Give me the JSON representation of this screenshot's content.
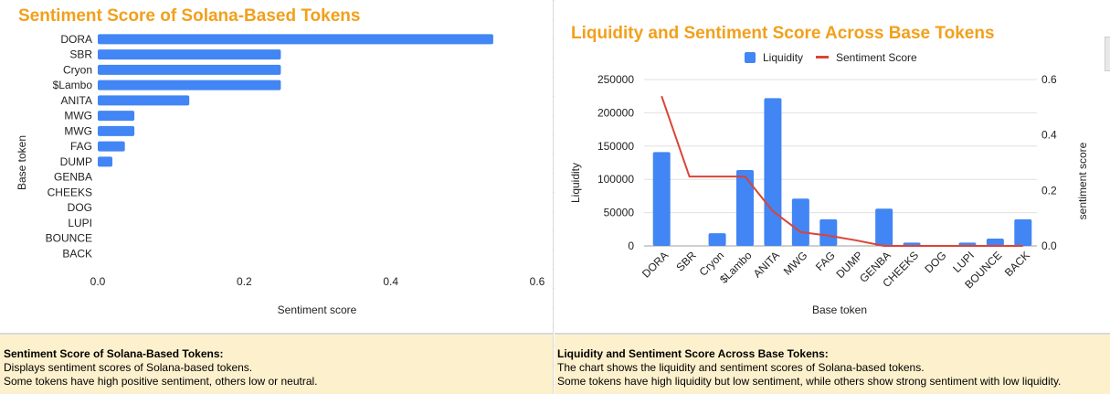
{
  "colors": {
    "title": "#f2a01c",
    "bar": "#4285f4",
    "line": "#db4437",
    "grid": "#e0e0e0",
    "note_background": "#fdf1cd"
  },
  "chart_data": [
    {
      "type": "bar",
      "orientation": "horizontal",
      "title": "Sentiment Score of Solana-Based Tokens",
      "xlabel": "Sentiment score",
      "ylabel": "Base token",
      "categories": [
        "DORA",
        "SBR",
        "Cryon",
        "$Lambo",
        "ANITA",
        "MWG",
        "MWG",
        "FAG",
        "DUMP",
        "GENBA",
        "CHEEKS",
        "DOG",
        "LUPI",
        "BOUNCE",
        "BACK"
      ],
      "values": [
        0.54,
        0.25,
        0.25,
        0.25,
        0.125,
        0.05,
        0.05,
        0.037,
        0.02,
        0,
        0,
        0,
        0,
        0,
        0
      ],
      "xlim": [
        0,
        0.6
      ],
      "xticks": [
        "0.0",
        "0.2",
        "0.4",
        "0.6"
      ],
      "grid": false,
      "legend": "none"
    },
    {
      "type": "bar+line",
      "title": "Liquidity and Sentiment Score Across Base Tokens",
      "xlabel": "Base token",
      "ylabel": "Liquidity",
      "ylabel_right": "sentiment score",
      "categories": [
        "DORA",
        "SBR",
        "Cryon",
        "$Lambo",
        "ANITA",
        "MWG",
        "FAG",
        "DUMP",
        "GENBA",
        "CHEEKS",
        "DOG",
        "LUPI",
        "BOUNCE",
        "BACK"
      ],
      "series": [
        {
          "name": "Liquidity",
          "type": "bar",
          "axis": "left",
          "values": [
            141000,
            0,
            19000,
            114000,
            222000,
            71000,
            40000,
            0,
            56000,
            5000,
            0,
            5000,
            11000,
            40000
          ]
        },
        {
          "name": "Sentiment Score",
          "type": "line",
          "axis": "right",
          "values": [
            0.54,
            0.25,
            0.25,
            0.25,
            0.125,
            0.05,
            0.037,
            0.02,
            0,
            0,
            0,
            0,
            0,
            0
          ]
        }
      ],
      "ylim": [
        0,
        250000
      ],
      "yticks": [
        "0",
        "50000",
        "100000",
        "150000",
        "200000",
        "250000"
      ],
      "ylim_right": [
        0,
        0.6
      ],
      "yticks_right": [
        "0.0",
        "0.2",
        "0.4",
        "0.6"
      ],
      "grid": true,
      "legend": "top-center"
    }
  ],
  "notes": {
    "left": {
      "heading": "Sentiment Score of Solana-Based Tokens:",
      "line1": "Displays sentiment scores of Solana-based tokens.",
      "line2": "Some tokens have high positive sentiment, others low or neutral."
    },
    "right": {
      "heading": "Liquidity and Sentiment Score Across Base Tokens:",
      "line1": "The chart shows the liquidity and sentiment scores of Solana-based tokens.",
      "line2": "Some tokens have high liquidity but low sentiment, while others show strong sentiment with low liquidity."
    }
  }
}
